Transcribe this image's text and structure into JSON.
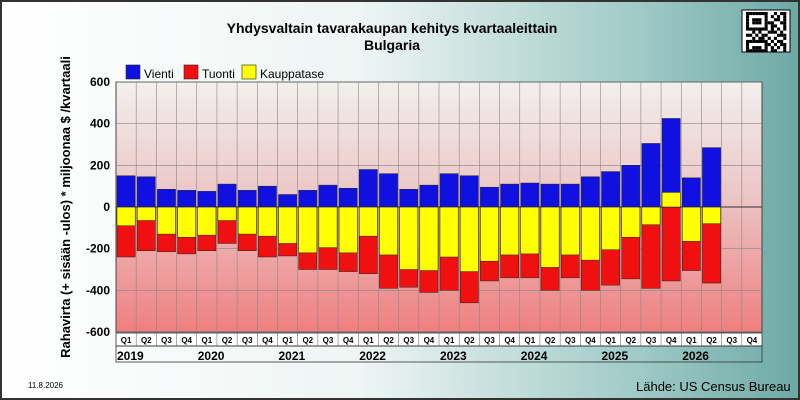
{
  "header": {
    "title": "Yhdysvaltain tavarakaupan kehitys kvartaaleittain",
    "subtitle": "Bulgaria"
  },
  "footer": {
    "date": "11.8.2026",
    "source": "Lähde: US Census Bureau"
  },
  "colors": {
    "export": "#1010e0",
    "import": "#f01010",
    "balance": "#ffff00"
  },
  "chart_data": {
    "type": "bar",
    "ylabel": "Rahavirta (+ sisään -ulos)  *  miljoonaa $ /kvartaali",
    "ylim": [
      -600,
      600
    ],
    "yticks": [
      -600,
      -400,
      -200,
      0,
      200,
      400,
      600
    ],
    "grid": true,
    "legend_placement": "top-left",
    "years": [
      "2019",
      "2020",
      "2021",
      "2022",
      "2023",
      "2024",
      "2025",
      "2026"
    ],
    "quarter_labels": [
      "Q1",
      "Q2",
      "Q3",
      "Q4"
    ],
    "series": [
      {
        "name": "Vienti",
        "values": [
          150,
          145,
          85,
          80,
          75,
          110,
          80,
          100,
          60,
          80,
          105,
          90,
          180,
          160,
          85,
          105,
          160,
          150,
          95,
          110,
          115,
          110,
          110,
          145,
          170,
          200,
          305,
          425,
          140,
          285,
          null,
          null
        ]
      },
      {
        "name": "Tuonti",
        "values": [
          -240,
          -210,
          -215,
          -225,
          -210,
          -175,
          -210,
          -240,
          -235,
          -300,
          -300,
          -310,
          -320,
          -390,
          -385,
          -410,
          -400,
          -460,
          -355,
          -340,
          -340,
          -400,
          -340,
          -400,
          -375,
          -345,
          -390,
          -355,
          -305,
          -365,
          null,
          null
        ]
      },
      {
        "name": "Kauppatase",
        "values": [
          -90,
          -65,
          -130,
          -145,
          -135,
          -65,
          -130,
          -140,
          -175,
          -220,
          -195,
          -220,
          -140,
          -230,
          -300,
          -305,
          -240,
          -310,
          -260,
          -230,
          -225,
          -290,
          -230,
          -255,
          -205,
          -145,
          -85,
          70,
          -165,
          -80,
          null,
          null
        ]
      }
    ]
  }
}
